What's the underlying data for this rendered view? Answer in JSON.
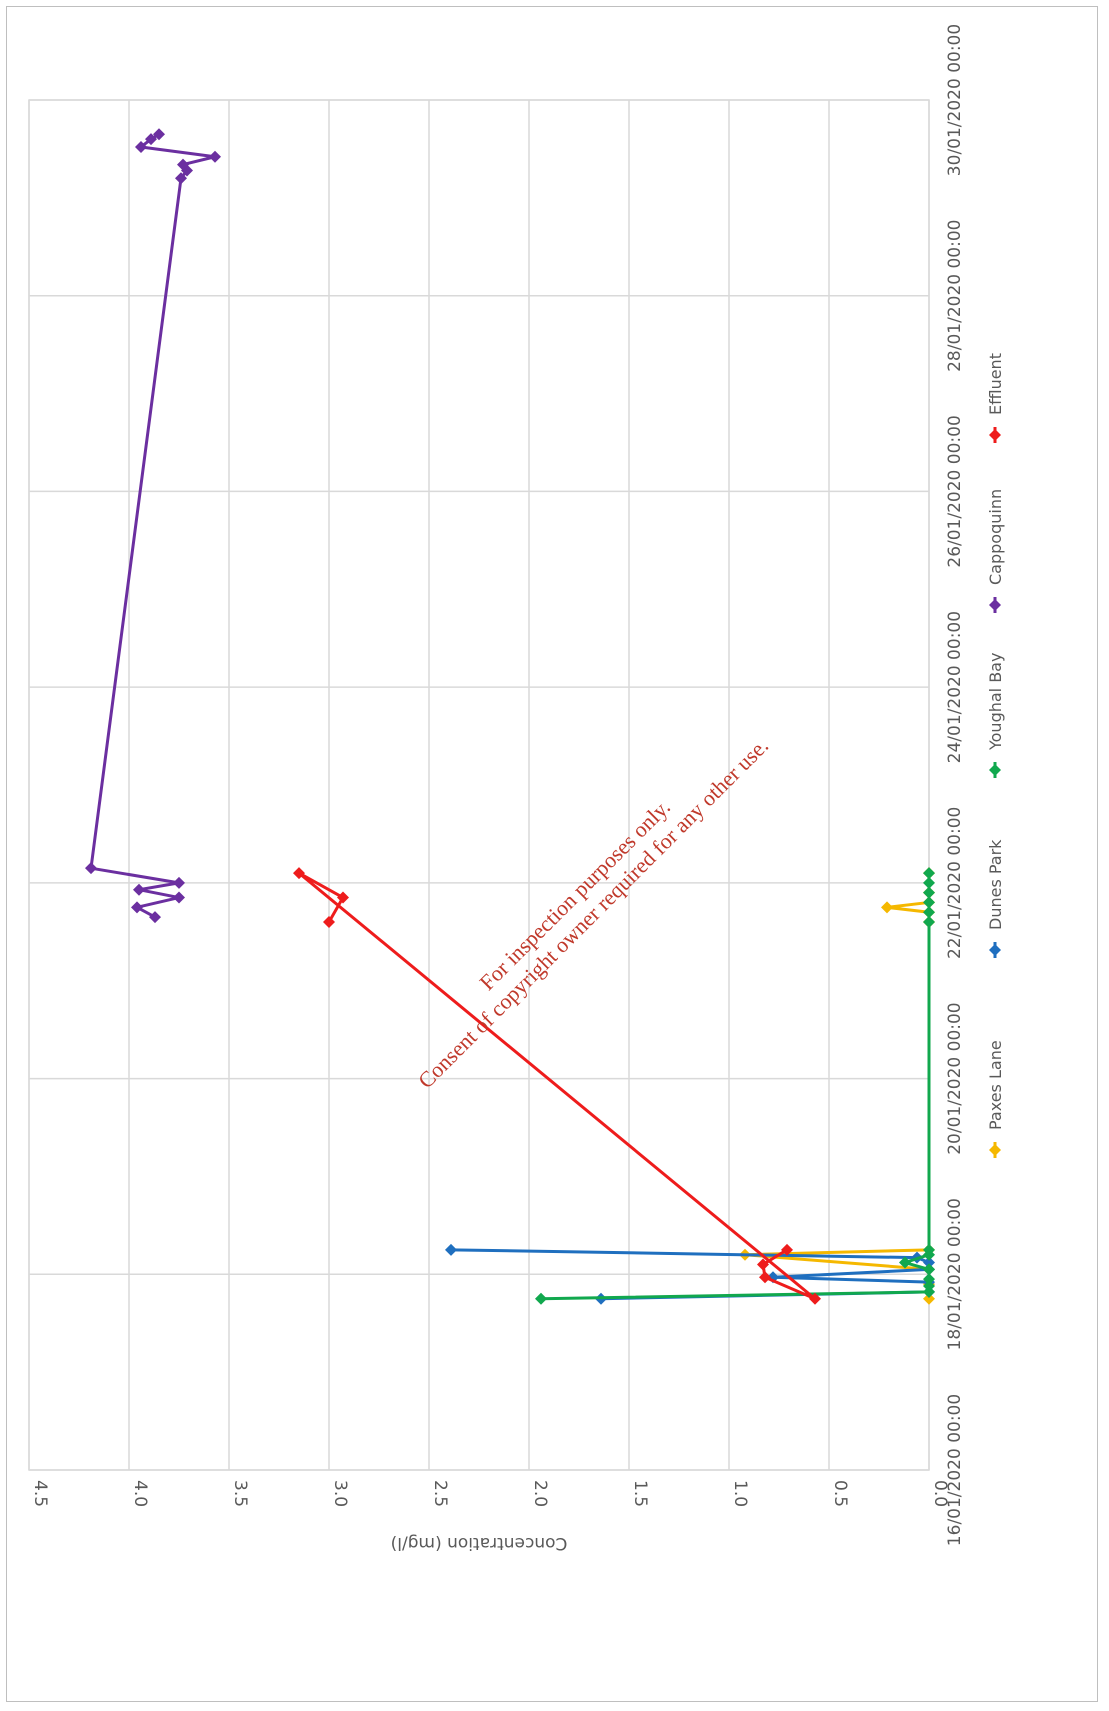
{
  "chart_data": {
    "type": "line",
    "orientation": "rotated-90-clockwise",
    "ylabel": "Concentration (mg/l)",
    "xlabel": "",
    "ylim": [
      0,
      4.5
    ],
    "yticks": [
      "0.0",
      "0.5",
      "1.0",
      "1.5",
      "2.0",
      "2.5",
      "3.0",
      "3.5",
      "4.0",
      "4.5"
    ],
    "xticks": [
      "16/01/2020 00:00",
      "18/01/2020 00:00",
      "20/01/2020 00:00",
      "22/01/2020 00:00",
      "24/01/2020 00:00",
      "26/01/2020 00:00",
      "28/01/2020 00:00",
      "30/01/2020 00:00"
    ],
    "xlim_days": [
      0,
      14
    ],
    "grid": true,
    "legend_position": "bottom",
    "series": [
      {
        "name": "Paxes Lane",
        "color": "#f5b800",
        "points": [
          [
            1.75,
            0.0
          ],
          [
            1.9,
            0.0
          ],
          [
            2.05,
            0.0
          ],
          [
            2.2,
            0.92
          ],
          [
            2.25,
            0.0
          ],
          [
            5.6,
            0.0
          ],
          [
            5.7,
            0.0
          ],
          [
            5.75,
            0.21
          ],
          [
            5.8,
            0.0
          ],
          [
            5.9,
            0.0
          ],
          [
            6.1,
            0.0
          ]
        ]
      },
      {
        "name": "Dunes Park",
        "color": "#1f6fbf",
        "points": [
          [
            1.75,
            1.64
          ],
          [
            1.82,
            0.0
          ],
          [
            1.92,
            0.0
          ],
          [
            1.97,
            0.78
          ],
          [
            2.05,
            0.0
          ],
          [
            2.12,
            0.0
          ],
          [
            2.17,
            0.06
          ],
          [
            2.25,
            2.39
          ]
        ]
      },
      {
        "name": "Youghal Bay",
        "color": "#11a84e",
        "points": [
          [
            1.75,
            1.94
          ],
          [
            1.82,
            0.0
          ],
          [
            1.88,
            0.0
          ],
          [
            1.95,
            0.0
          ],
          [
            2.05,
            0.0
          ],
          [
            2.12,
            0.12
          ],
          [
            2.2,
            0.0
          ],
          [
            2.25,
            0.0
          ],
          [
            5.6,
            0.0
          ],
          [
            5.7,
            0.0
          ],
          [
            5.8,
            0.0
          ],
          [
            5.9,
            0.0
          ],
          [
            6.0,
            0.0
          ],
          [
            6.1,
            0.0
          ]
        ]
      },
      {
        "name": "Cappoquinn",
        "color": "#6b2fa0",
        "points": [
          [
            5.65,
            3.87
          ],
          [
            5.75,
            3.96
          ],
          [
            5.85,
            3.75
          ],
          [
            5.93,
            3.95
          ],
          [
            6.0,
            3.75
          ],
          [
            6.15,
            4.19
          ],
          [
            13.2,
            3.74
          ],
          [
            13.28,
            3.71
          ],
          [
            13.34,
            3.73
          ],
          [
            13.42,
            3.57
          ],
          [
            13.52,
            3.94
          ],
          [
            13.6,
            3.89
          ],
          [
            13.65,
            3.85
          ]
        ]
      },
      {
        "name": "Effluent",
        "color": "#ee1c1c",
        "points": [
          [
            5.6,
            3.0
          ],
          [
            5.85,
            2.93
          ],
          [
            6.1,
            3.15
          ],
          [
            1.75,
            0.57
          ],
          [
            1.97,
            0.82
          ],
          [
            2.1,
            0.83
          ],
          [
            2.25,
            0.71
          ]
        ]
      }
    ]
  },
  "watermark": {
    "line1": "For inspection purposes only.",
    "line2": "Consent of copyright owner required for any other use."
  }
}
